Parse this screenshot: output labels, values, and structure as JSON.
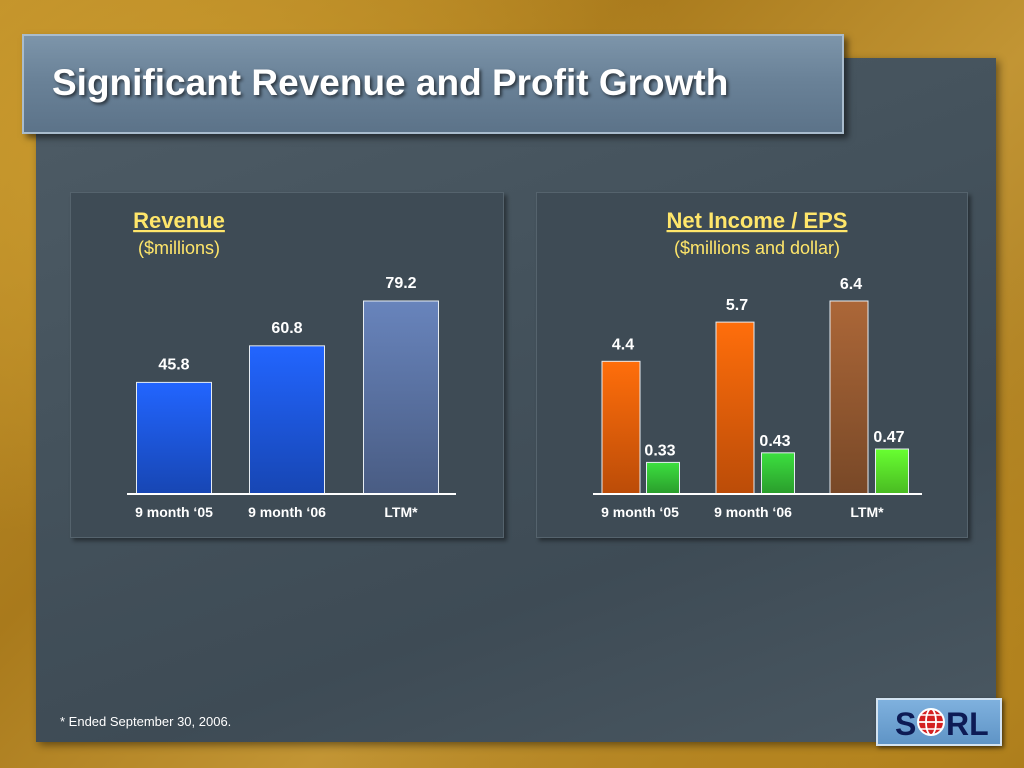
{
  "slide": {
    "title": "Significant Revenue and Profit Growth",
    "footnote": "* Ended September 30, 2006.",
    "logo_text": "SORL"
  },
  "colors": {
    "revenue_bar_1": "#1e5ae6",
    "revenue_bar_2": "#1e5ae6",
    "revenue_bar_3": "#5d76a8",
    "net_income_1": "#f0620a",
    "net_income_2": "#f0620a",
    "net_income_3": "#9a5c32",
    "eps_1": "#36c838",
    "eps_2": "#36c838",
    "eps_3": "#5dee2c",
    "chart_title": "#ffe66a",
    "chart_bg": "#3e4b55"
  },
  "chart_data": [
    {
      "type": "bar",
      "title": "Revenue",
      "subtitle": "($millions)",
      "categories": [
        "9 month ‘05",
        "9 month ‘06",
        "LTM*"
      ],
      "values": [
        45.8,
        60.8,
        79.2
      ],
      "value_labels": [
        "45.8",
        "60.8",
        "79.2"
      ],
      "ylim": [
        0,
        79.2
      ],
      "grid": false
    },
    {
      "type": "bar",
      "title": "Net Income / EPS",
      "subtitle": "($millions and dollar)",
      "categories": [
        "9 month ‘05",
        "9 month ‘06",
        "LTM*"
      ],
      "series": [
        {
          "values": [
            4.4,
            5.7,
            6.4
          ],
          "value_labels": [
            "4.4",
            "5.7",
            "6.4"
          ]
        },
        {
          "values": [
            0.33,
            0.43,
            0.47
          ],
          "value_labels": [
            "0.33",
            "0.43",
            "0.47"
          ]
        }
      ],
      "ylim": [
        0,
        6.4
      ],
      "grid": false
    }
  ]
}
